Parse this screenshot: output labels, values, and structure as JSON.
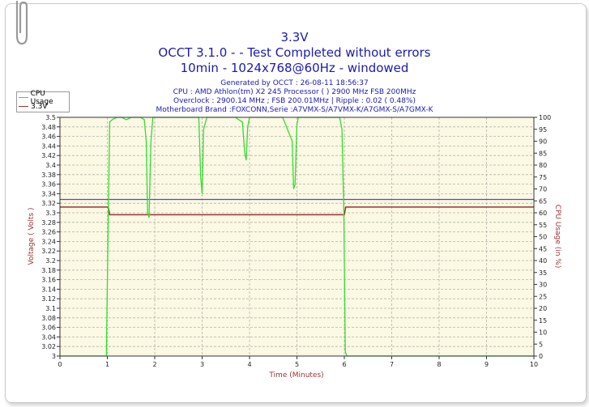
{
  "window": {
    "title_line1": "3.3V",
    "title_line2": "OCCT 3.1.0 -  - Test Completed without errors",
    "title_line3": "10min - 1024x768@60Hz - windowed"
  },
  "info": {
    "generated": "Generated by OCCT : 26-08-11 18:56:37",
    "cpu": "CPU : AMD Athlon(tm) X2 245 Processor (  ) 2900 MHz FSB 200MHz",
    "overclock": "Overclock : 2900.14 MHz ; FSB 200.01MHz | Ripple : 0.02 ( 0.48%)",
    "motherboard": "Motherboard Brand :FOXCONN,Serie :A7VMX-S/A7VMX-K/A7GMX-S/A7GMX-K"
  },
  "colors": {
    "cpu_usage": "#33dd33",
    "voltage": "#993333",
    "reference": "#4a4adb",
    "plot_bg": "#fbf8e3",
    "grid": "#b5b5a8",
    "axis_label": "#993333"
  },
  "chart_data": {
    "type": "line",
    "xlabel": "Time (Minutes)",
    "ylabel_left": "Voltage ( Volts )",
    "ylabel_right": "CPU Usage (in %)",
    "xlim": [
      0,
      10
    ],
    "ylim_left": [
      3,
      3.5
    ],
    "ylim_right": [
      0,
      100
    ],
    "x_ticks": [
      "0",
      "1",
      "2",
      "3",
      "4",
      "5",
      "6",
      "7",
      "8",
      "9",
      "10"
    ],
    "y_left_ticks": [
      "3",
      "3.02",
      "3.04",
      "3.06",
      "3.08",
      "3.1",
      "3.12",
      "3.14",
      "3.16",
      "3.18",
      "3.2",
      "3.22",
      "3.24",
      "3.26",
      "3.28",
      "3.3",
      "3.32",
      "3.34",
      "3.36",
      "3.38",
      "3.4",
      "3.42",
      "3.44",
      "3.46",
      "3.48",
      "3.5"
    ],
    "y_right_ticks": [
      "0",
      "5",
      "10",
      "15",
      "20",
      "25",
      "30",
      "35",
      "40",
      "45",
      "50",
      "55",
      "60",
      "65",
      "70",
      "75",
      "80",
      "85",
      "90",
      "95",
      "100"
    ],
    "grid": true,
    "legend": [
      "CPU Usage",
      "3.3V"
    ],
    "legend_position": "top-left",
    "reference_line": {
      "axis": "left",
      "value": 3.328
    },
    "series": [
      {
        "name": "3.3V",
        "axis": "left",
        "x": [
          0,
          1.02,
          1.05,
          6.0,
          6.03,
          10
        ],
        "values": [
          3.312,
          3.312,
          3.296,
          3.296,
          3.312,
          3.312
        ]
      },
      {
        "name": "CPU Usage",
        "axis": "right",
        "x": [
          0,
          0.98,
          1.02,
          1.05,
          1.1,
          1.2,
          1.3,
          1.4,
          1.5,
          1.6,
          1.7,
          1.78,
          1.82,
          1.85,
          1.88,
          1.92,
          1.96,
          2.0,
          2.2,
          2.4,
          2.6,
          2.8,
          2.93,
          2.97,
          3.0,
          3.03,
          3.1,
          3.3,
          3.5,
          3.7,
          3.85,
          3.9,
          3.93,
          3.96,
          4.0,
          4.1,
          4.3,
          4.5,
          4.7,
          4.9,
          4.93,
          4.96,
          5.0,
          5.03,
          5.1,
          5.3,
          5.5,
          5.7,
          5.9,
          5.95,
          5.99,
          6.02,
          6.05,
          10
        ],
        "values": [
          0,
          0,
          60,
          98,
          99,
          100,
          100,
          99,
          100,
          100,
          100,
          99,
          90,
          60,
          58,
          90,
          100,
          100,
          100,
          100,
          100,
          100,
          100,
          75,
          68,
          95,
          100,
          100,
          100,
          100,
          98,
          85,
          82,
          96,
          100,
          100,
          100,
          100,
          100,
          90,
          70,
          72,
          97,
          100,
          100,
          100,
          100,
          100,
          100,
          95,
          60,
          2,
          0,
          0
        ]
      }
    ]
  }
}
